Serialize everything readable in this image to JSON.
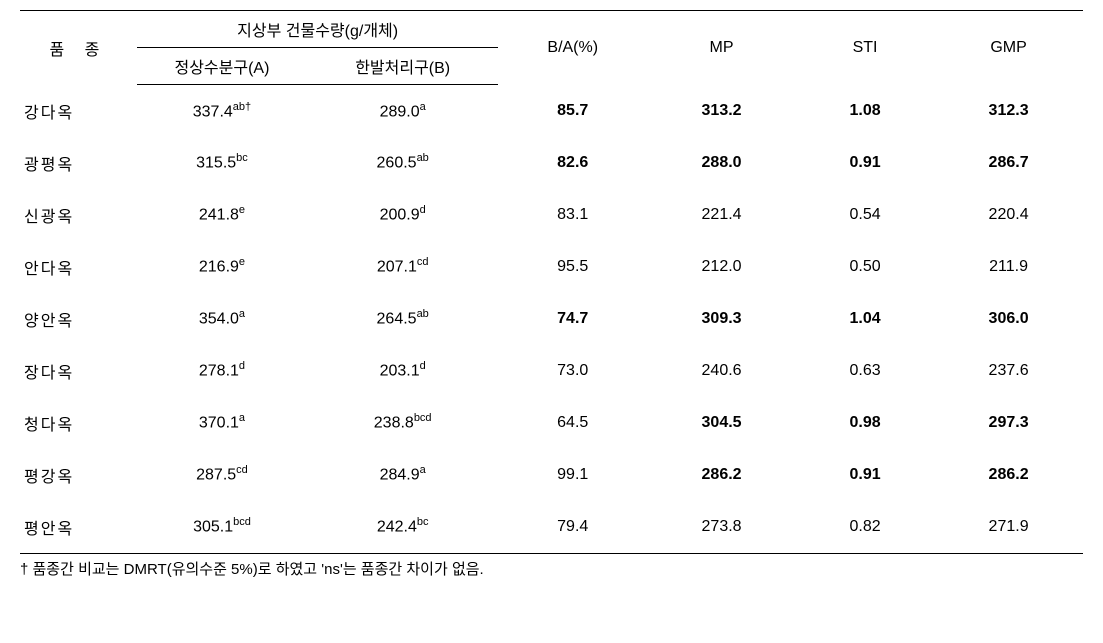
{
  "table": {
    "header": {
      "variety": "품 종",
      "group_label": "지상부 건물수량(g/개체)",
      "col_a": "정상수분구(A)",
      "col_b": "한발처리구(B)",
      "ba": "B/A(%)",
      "mp": "MP",
      "sti": "STI",
      "gmp": "GMP"
    },
    "rows": [
      {
        "variety": "강다옥",
        "a_val": "337.4",
        "a_sup": "ab†",
        "b_val": "289.0",
        "b_sup": "a",
        "ba": "85.7",
        "mp": "313.2",
        "sti": "1.08",
        "gmp": "312.3",
        "ba_bold": true,
        "mp_bold": true,
        "sti_bold": true,
        "gmp_bold": true
      },
      {
        "variety": "광평옥",
        "a_val": "315.5",
        "a_sup": "bc",
        "b_val": "260.5",
        "b_sup": "ab",
        "ba": "82.6",
        "mp": "288.0",
        "sti": "0.91",
        "gmp": "286.7",
        "ba_bold": true,
        "mp_bold": true,
        "sti_bold": true,
        "gmp_bold": true
      },
      {
        "variety": "신광옥",
        "a_val": "241.8",
        "a_sup": "e",
        "b_val": "200.9",
        "b_sup": "d",
        "ba": "83.1",
        "mp": "221.4",
        "sti": "0.54",
        "gmp": "220.4",
        "ba_bold": false,
        "mp_bold": false,
        "sti_bold": false,
        "gmp_bold": false
      },
      {
        "variety": "안다옥",
        "a_val": "216.9",
        "a_sup": "e",
        "b_val": "207.1",
        "b_sup": "cd",
        "ba": "95.5",
        "mp": "212.0",
        "sti": "0.50",
        "gmp": "211.9",
        "ba_bold": false,
        "mp_bold": false,
        "sti_bold": false,
        "gmp_bold": false
      },
      {
        "variety": "양안옥",
        "a_val": "354.0",
        "a_sup": "a",
        "b_val": "264.5",
        "b_sup": "ab",
        "ba": "74.7",
        "mp": "309.3",
        "sti": "1.04",
        "gmp": "306.0",
        "ba_bold": true,
        "mp_bold": true,
        "sti_bold": true,
        "gmp_bold": true
      },
      {
        "variety": "장다옥",
        "a_val": "278.1",
        "a_sup": "d",
        "b_val": "203.1",
        "b_sup": "d",
        "ba": "73.0",
        "mp": "240.6",
        "sti": "0.63",
        "gmp": "237.6",
        "ba_bold": false,
        "mp_bold": false,
        "sti_bold": false,
        "gmp_bold": false
      },
      {
        "variety": "청다옥",
        "a_val": "370.1",
        "a_sup": "a",
        "b_val": "238.8",
        "b_sup": "bcd",
        "ba": "64.5",
        "mp": "304.5",
        "sti": "0.98",
        "gmp": "297.3",
        "ba_bold": false,
        "mp_bold": true,
        "sti_bold": true,
        "gmp_bold": true
      },
      {
        "variety": "평강옥",
        "a_val": "287.5",
        "a_sup": "cd",
        "b_val": "284.9",
        "b_sup": "a",
        "ba": "99.1",
        "mp": "286.2",
        "sti": "0.91",
        "gmp": "286.2",
        "ba_bold": false,
        "mp_bold": true,
        "sti_bold": true,
        "gmp_bold": true
      },
      {
        "variety": "평안옥",
        "a_val": "305.1",
        "a_sup": "bcd",
        "b_val": "242.4",
        "b_sup": "bc",
        "ba": "79.4",
        "mp": "273.8",
        "sti": "0.82",
        "gmp": "271.9",
        "ba_bold": false,
        "mp_bold": false,
        "sti_bold": false,
        "gmp_bold": false
      }
    ],
    "footnote": "† 품종간 비교는 DMRT(유의수준 5%)로 하였고 'ns'는 품종간 차이가 없음."
  },
  "style": {
    "background_color": "#ffffff",
    "text_color": "#000000",
    "border_color": "#000000",
    "base_fontsize": 16,
    "sup_fontsize": 11,
    "footnote_fontsize": 15,
    "column_widths": {
      "variety": "11%",
      "col_a": "16%",
      "col_b": "18%",
      "ba": "14%",
      "mp": "14%",
      "sti": "13%",
      "gmp": "14%"
    }
  }
}
